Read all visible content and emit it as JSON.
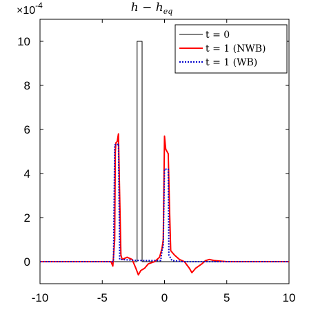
{
  "chart_data": {
    "type": "line",
    "title": "h − h_eq",
    "title_main": "h − h",
    "title_sub": "eq",
    "y_exponent_label": "×10",
    "y_exponent_power": "-4",
    "xlim": [
      -10,
      10
    ],
    "ylim": [
      -1,
      11
    ],
    "x_ticks": [
      -10,
      -5,
      0,
      5,
      10
    ],
    "y_ticks": [
      0,
      2,
      4,
      6,
      8,
      10
    ],
    "legend_position": "top-right",
    "grid": false,
    "series": [
      {
        "name": "t = 0",
        "color": "#000000",
        "dash": "solid",
        "points": [
          [
            -10,
            0
          ],
          [
            -2.2,
            0
          ],
          [
            -2.2,
            10
          ],
          [
            -1.8,
            10
          ],
          [
            -1.8,
            0
          ],
          [
            10,
            0
          ]
        ]
      },
      {
        "name": "t = 1 (NWB)",
        "color": "#ff0000",
        "dash": "solid",
        "points": [
          [
            -10,
            0
          ],
          [
            -4.3,
            0
          ],
          [
            -4.15,
            -0.2
          ],
          [
            -4.0,
            1.0
          ],
          [
            -3.95,
            5.0
          ],
          [
            -3.9,
            5.4
          ],
          [
            -3.8,
            5.45
          ],
          [
            -3.7,
            5.8
          ],
          [
            -3.6,
            3.0
          ],
          [
            -3.5,
            0.3
          ],
          [
            -3.4,
            0.1
          ],
          [
            -3.0,
            0.2
          ],
          [
            -2.6,
            0.1
          ],
          [
            -2.3,
            -0.3
          ],
          [
            -2.1,
            -0.6
          ],
          [
            -1.9,
            -0.4
          ],
          [
            -1.6,
            -0.3
          ],
          [
            -1.3,
            -0.1
          ],
          [
            -0.8,
            0.0
          ],
          [
            -0.4,
            0.2
          ],
          [
            -0.2,
            0.6
          ],
          [
            -0.1,
            1.0
          ],
          [
            0.0,
            5.7
          ],
          [
            0.1,
            5.1
          ],
          [
            0.2,
            5.0
          ],
          [
            0.3,
            4.9
          ],
          [
            0.4,
            2.5
          ],
          [
            0.5,
            0.5
          ],
          [
            0.8,
            0.3
          ],
          [
            1.2,
            0.1
          ],
          [
            1.6,
            0.0
          ],
          [
            2.0,
            -0.3
          ],
          [
            2.2,
            -0.5
          ],
          [
            2.5,
            -0.3
          ],
          [
            3.0,
            -0.1
          ],
          [
            3.3,
            0.05
          ],
          [
            3.6,
            0.1
          ],
          [
            4.0,
            0.05
          ],
          [
            5.0,
            0
          ],
          [
            10,
            0
          ]
        ]
      },
      {
        "name": "t = 1 (WB)",
        "color": "#0000cc",
        "dash": "dotted",
        "points": [
          [
            -10,
            0
          ],
          [
            -4.1,
            0
          ],
          [
            -4.0,
            5.3
          ],
          [
            -3.8,
            5.3
          ],
          [
            -3.7,
            5.35
          ],
          [
            -3.6,
            0.1
          ],
          [
            -2.0,
            0.05
          ],
          [
            -0.3,
            0.05
          ],
          [
            -0.2,
            0.5
          ],
          [
            -0.1,
            0.7
          ],
          [
            0.0,
            4.2
          ],
          [
            0.3,
            4.2
          ],
          [
            0.35,
            0.3
          ],
          [
            0.6,
            0.05
          ],
          [
            1.5,
            0
          ],
          [
            10,
            0
          ]
        ]
      }
    ]
  }
}
